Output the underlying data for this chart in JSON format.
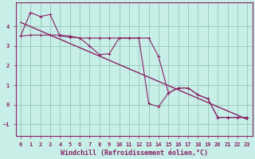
{
  "xlabel": "Windchill (Refroidissement éolien,°C)",
  "background_color": "#c8eee8",
  "grid_color": "#99ccbb",
  "line_color": "#882266",
  "xlim": [
    -0.5,
    23.5
  ],
  "ylim": [
    -1.6,
    5.2
  ],
  "yticks": [
    -1,
    0,
    1,
    2,
    3,
    4
  ],
  "xticks": [
    0,
    1,
    2,
    3,
    4,
    5,
    6,
    7,
    8,
    9,
    10,
    11,
    12,
    13,
    14,
    15,
    16,
    17,
    18,
    19,
    20,
    21,
    22,
    23
  ],
  "series1_x": [
    0,
    1,
    2,
    3,
    4,
    5,
    6,
    7,
    8,
    9,
    10,
    11,
    12,
    13,
    14,
    15,
    16,
    17,
    18,
    19,
    20,
    21,
    22,
    23
  ],
  "series1_y": [
    3.5,
    3.55,
    3.55,
    3.55,
    3.55,
    3.5,
    3.4,
    3.4,
    3.4,
    3.4,
    3.4,
    3.4,
    3.4,
    3.4,
    2.45,
    0.6,
    0.85,
    0.85,
    0.5,
    0.3,
    -0.65,
    -0.65,
    -0.65,
    -0.65
  ],
  "series2_x": [
    0,
    1,
    2,
    3,
    4,
    5,
    6,
    7,
    8,
    9,
    10,
    11,
    12,
    13,
    14,
    15,
    16,
    17,
    18,
    19,
    20,
    21,
    22,
    23
  ],
  "series2_y": [
    3.5,
    4.7,
    4.5,
    4.6,
    3.5,
    3.45,
    3.4,
    3.0,
    2.55,
    2.6,
    3.4,
    3.4,
    3.4,
    0.05,
    -0.1,
    0.6,
    0.85,
    0.85,
    0.5,
    0.3,
    -0.65,
    -0.65,
    -0.65,
    -0.65
  ],
  "trend_x": [
    0,
    23
  ],
  "trend_y": [
    4.2,
    -0.75
  ],
  "tick_fontsize": 5.0,
  "xlabel_fontsize": 6.0
}
